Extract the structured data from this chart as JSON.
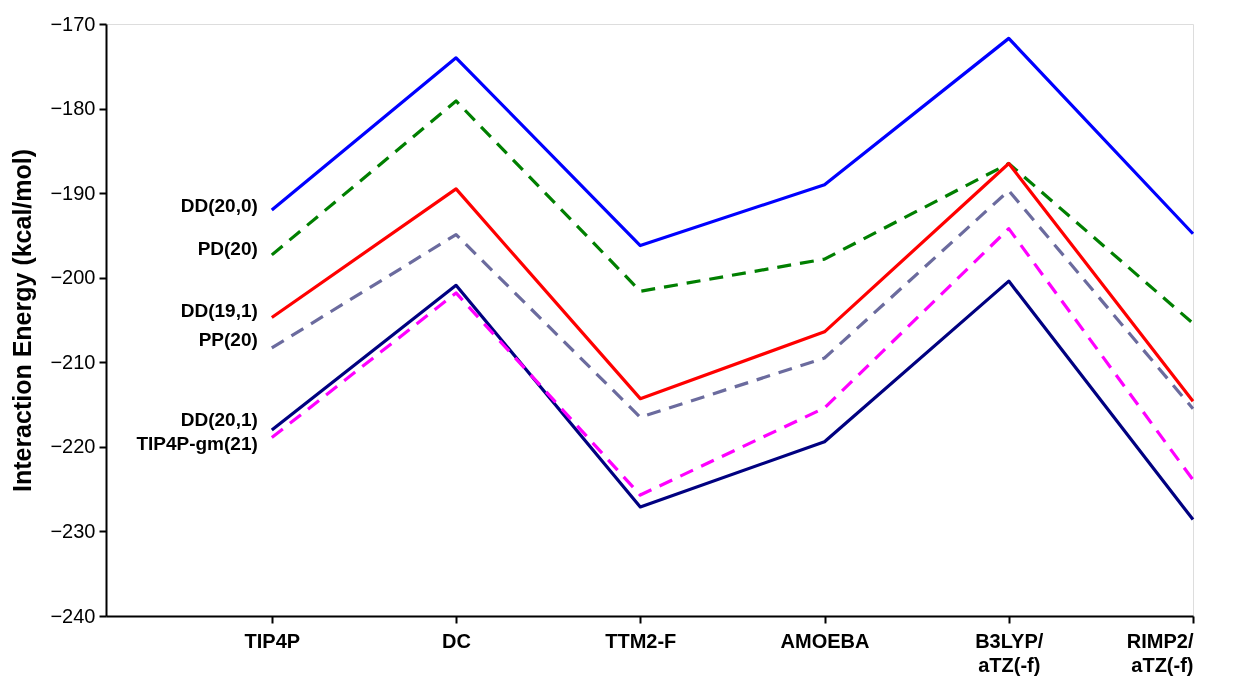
{
  "chart_data": {
    "type": "line",
    "ylabel": "Interaction Energy (kcal/mol)",
    "categories": [
      "TIP4P",
      "DC",
      "TTM2-F",
      "AMOEBA",
      "B3LYP/aTZ(-f)",
      "RIMP2/aTZ(-f)"
    ],
    "ylim": [
      -240,
      -170
    ],
    "yticks": [
      -240,
      -230,
      -220,
      -210,
      -200,
      -190,
      -180,
      -170
    ],
    "grid": false,
    "legend": false,
    "series": [
      {
        "name": "DD(20,0)",
        "color": "#0000ff",
        "line_style": "solid",
        "values": [
          -192,
          -174,
          -196.2,
          -189,
          -171.7,
          -194.8
        ]
      },
      {
        "name": "PD(20)",
        "color": "#007f00",
        "line_style": "dashed",
        "values": [
          -197.3,
          -179.1,
          -201.6,
          -197.8,
          -186.5,
          -205.4
        ]
      },
      {
        "name": "DD(19,1)",
        "color": "#ff0000",
        "line_style": "solid",
        "values": [
          -204.7,
          -189.5,
          -214.3,
          -206.4,
          -186.5,
          -214.6
        ]
      },
      {
        "name": "PP(20)",
        "color": "#6b6b9e",
        "line_style": "dashed",
        "values": [
          -208.3,
          -194.9,
          -216.5,
          -209.5,
          -189.7,
          -215.5
        ]
      },
      {
        "name": "DD(20,1)",
        "color": "#000080",
        "line_style": "solid",
        "values": [
          -218,
          -200.9,
          -227.1,
          -219.4,
          -200.4,
          -228.6
        ]
      },
      {
        "name": "TIP4P-gm(21)",
        "color": "#ff00ff",
        "line_style": "dashed",
        "values": [
          -218.9,
          -201.8,
          -225.7,
          -215.4,
          -194.2,
          -223.9
        ]
      }
    ]
  }
}
